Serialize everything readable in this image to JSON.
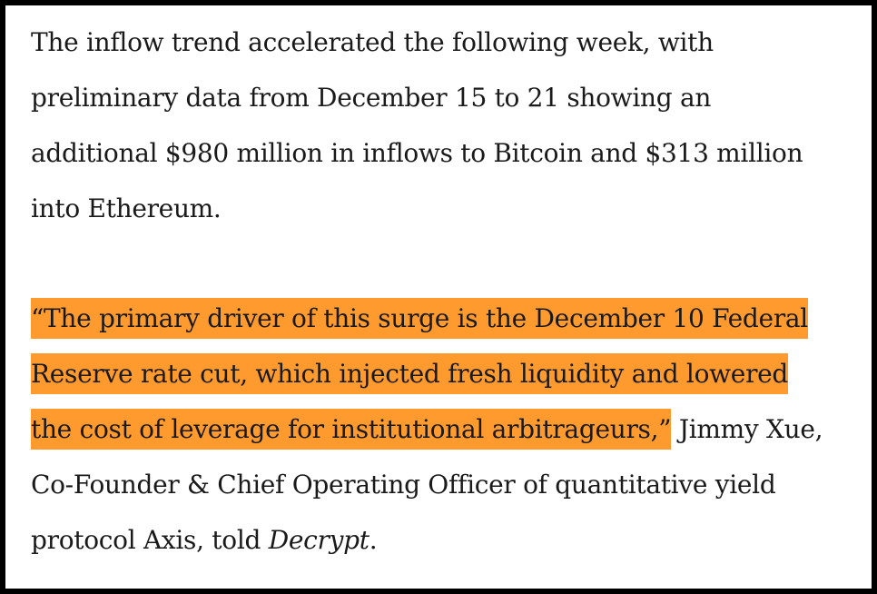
{
  "article": {
    "paragraph1": {
      "lines": [
        "The inflow trend accelerated the following week, with",
        "preliminary data from December 15 to 21 showing an",
        "additional $980 million in inflows to Bitcoin and $313 million",
        "into Ethereum."
      ]
    },
    "paragraph2": {
      "highlight_lines": [
        "“The primary driver of this surge is the December 10 Federal",
        "Reserve rate cut, which injected fresh liquidity and lowered",
        "the cost of leverage for institutional arbitrageurs,”"
      ],
      "attribution_inline": " Jimmy Xue,",
      "attribution_line2": "Co-Founder & Chief Operating Officer of quantitative yield",
      "attribution_line3_prefix": "protocol Axis, told ",
      "publication": "Decrypt",
      "attribution_line3_suffix": "."
    }
  },
  "colors": {
    "highlight": "#ff9a2e",
    "text": "#1a1a1a",
    "border": "#000000"
  }
}
